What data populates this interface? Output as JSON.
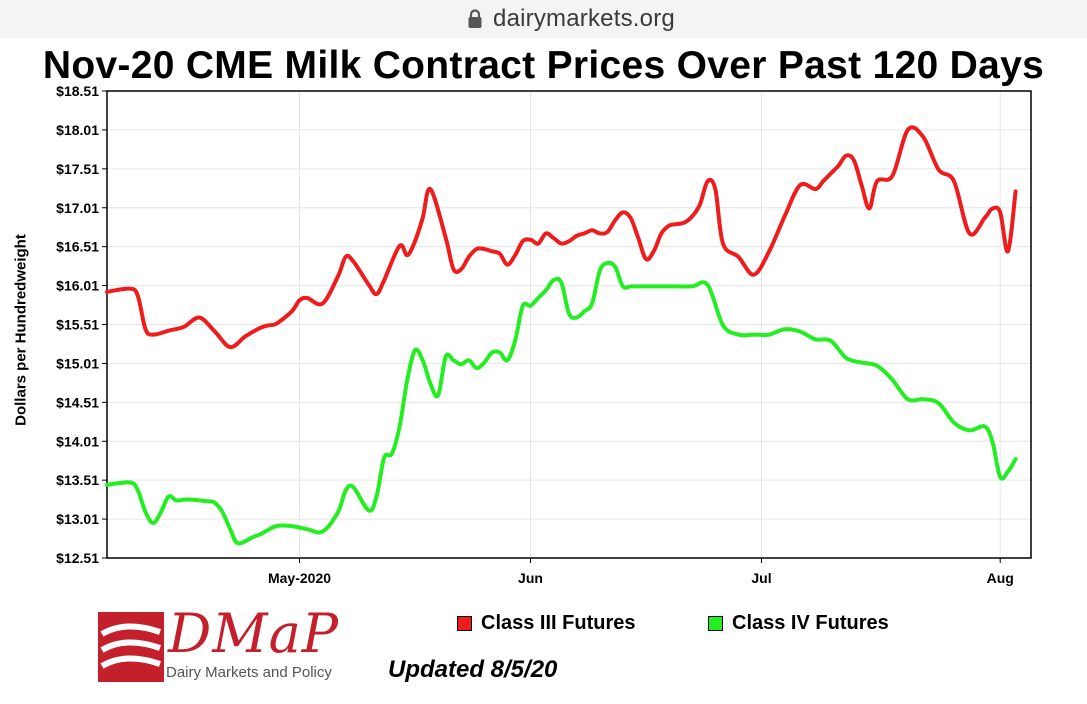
{
  "browser": {
    "url": "dairymarkets.org"
  },
  "chart_data": {
    "type": "line",
    "title": "Nov-20 CME Milk Contract Prices Over Past 120 Days",
    "ylabel": "Dollars per Hundredweight",
    "xlabel": "",
    "ylim": [
      12.51,
      18.51
    ],
    "yticks": [
      "$18.51",
      "$18.01",
      "$17.51",
      "$17.01",
      "$16.51",
      "$16.01",
      "$15.51",
      "$15.01",
      "$14.51",
      "$14.01",
      "$13.51",
      "$13.01",
      "$12.51"
    ],
    "ytick_values": [
      18.51,
      18.01,
      17.51,
      17.01,
      16.51,
      16.01,
      15.51,
      15.01,
      14.51,
      14.01,
      13.51,
      13.01,
      12.51
    ],
    "x_domain": [
      0,
      120
    ],
    "xticks": [
      {
        "label": "May-2020",
        "day": 25
      },
      {
        "label": "Jun",
        "day": 55
      },
      {
        "label": "Jul",
        "day": 85
      },
      {
        "label": "Aug",
        "day": 116
      }
    ],
    "grid": true,
    "series": [
      {
        "name": "Class III Futures",
        "color": "#ee1c1c",
        "x": [
          0,
          3,
          4,
          5,
          6,
          8,
          10,
          12,
          14,
          16,
          18,
          20,
          21,
          22,
          24,
          25,
          26,
          28,
          30,
          31,
          32,
          34,
          35,
          36,
          38,
          39,
          40,
          41,
          42,
          44,
          45,
          46,
          47,
          48,
          49,
          50,
          51,
          52,
          53,
          54,
          55,
          56,
          57,
          58,
          59,
          60,
          61,
          62,
          63,
          64,
          65,
          66,
          67,
          68,
          69,
          70,
          71,
          72,
          73,
          74,
          75,
          76,
          77,
          78,
          79,
          80,
          82,
          84,
          86,
          88,
          90,
          92,
          93,
          94,
          95,
          96,
          97,
          98,
          99,
          100,
          102,
          104,
          106,
          108,
          110,
          112,
          114,
          115,
          116,
          117,
          118
        ],
        "values": [
          15.93,
          15.97,
          15.88,
          15.45,
          15.38,
          15.43,
          15.48,
          15.6,
          15.42,
          15.22,
          15.36,
          15.47,
          15.5,
          15.52,
          15.68,
          15.82,
          15.85,
          15.78,
          16.13,
          16.38,
          16.32,
          16.02,
          15.9,
          16.08,
          16.52,
          16.4,
          16.58,
          16.88,
          17.25,
          16.62,
          16.22,
          16.22,
          16.38,
          16.48,
          16.48,
          16.45,
          16.42,
          16.28,
          16.4,
          16.58,
          16.6,
          16.55,
          16.68,
          16.62,
          16.55,
          16.58,
          16.65,
          16.68,
          16.72,
          16.68,
          16.7,
          16.85,
          16.95,
          16.88,
          16.62,
          16.35,
          16.45,
          16.68,
          16.78,
          16.8,
          16.82,
          16.9,
          17.05,
          17.35,
          17.25,
          16.55,
          16.38,
          16.15,
          16.45,
          16.9,
          17.3,
          17.25,
          17.35,
          17.45,
          17.55,
          17.68,
          17.62,
          17.3,
          17.0,
          17.35,
          17.42,
          18.01,
          17.92,
          17.5,
          17.35,
          16.68,
          16.88,
          17.0,
          16.95,
          16.45,
          17.22
        ]
      },
      {
        "name": "Class IV Futures",
        "color": "#22ee22",
        "x": [
          0,
          3,
          4,
          5,
          6,
          7,
          8,
          9,
          10,
          11,
          13,
          14,
          15,
          16,
          17,
          19,
          20,
          22,
          24,
          26,
          28,
          30,
          31,
          32,
          34,
          35,
          36,
          37,
          38,
          39,
          40,
          41,
          42,
          43,
          44,
          45,
          46,
          47,
          48,
          49,
          50,
          51,
          52,
          53,
          54,
          55,
          56,
          57,
          58,
          59,
          60,
          61,
          62,
          63,
          64,
          65,
          66,
          67,
          68,
          69,
          70,
          72,
          74,
          76,
          78,
          80,
          82,
          84,
          86,
          88,
          90,
          92,
          94,
          96,
          98,
          100,
          102,
          104,
          106,
          108,
          110,
          112,
          114,
          115,
          116,
          117,
          118
        ],
        "values": [
          13.45,
          13.48,
          13.38,
          13.1,
          12.96,
          13.1,
          13.3,
          13.25,
          13.26,
          13.26,
          13.24,
          13.22,
          13.1,
          12.88,
          12.7,
          12.78,
          12.82,
          12.92,
          12.92,
          12.88,
          12.85,
          13.1,
          13.38,
          13.42,
          13.12,
          13.3,
          13.8,
          13.85,
          14.2,
          14.8,
          15.18,
          15.05,
          14.75,
          14.6,
          15.1,
          15.05,
          15.0,
          15.05,
          14.95,
          15.02,
          15.15,
          15.15,
          15.05,
          15.3,
          15.75,
          15.75,
          15.85,
          15.95,
          16.08,
          16.05,
          15.65,
          15.6,
          15.68,
          15.78,
          16.2,
          16.3,
          16.25,
          16.0,
          16.0,
          16.0,
          16.0,
          16.0,
          16.0,
          16.0,
          16.02,
          15.5,
          15.38,
          15.38,
          15.38,
          15.45,
          15.42,
          15.32,
          15.3,
          15.08,
          15.02,
          14.98,
          14.8,
          14.55,
          14.55,
          14.5,
          14.25,
          14.15,
          14.2,
          14.0,
          13.55,
          13.62,
          13.78
        ]
      }
    ]
  },
  "legend": {
    "items": [
      "Class III Futures",
      "Class IV Futures"
    ]
  },
  "footer": {
    "logo_text": "DMaP",
    "logo_subtitle": "Dairy Markets and Policy",
    "updated": "Updated 8/5/20"
  }
}
